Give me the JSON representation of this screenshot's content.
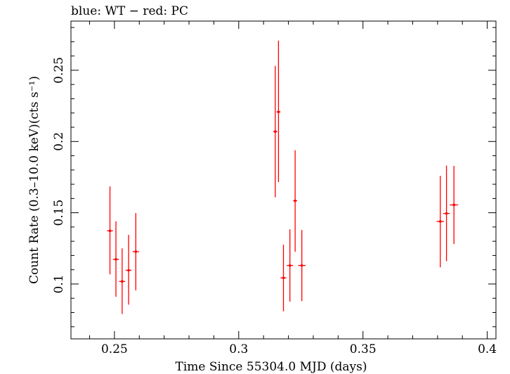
{
  "chart_data": {
    "type": "scatter",
    "title": "blue: WT − red: PC",
    "xlabel": "Time Since 55304.0 MJD (days)",
    "ylabel": "Count Rate (0.3–10.0 keV)(cts s⁻¹)",
    "xlim": [
      0.2325,
      0.4035
    ],
    "ylim": [
      0.0615,
      0.2845
    ],
    "x_ticks": [
      0.25,
      0.3,
      0.35,
      0.4
    ],
    "y_ticks": [
      0.1,
      0.15,
      0.2,
      0.25
    ],
    "x_tick_labels": [
      "0.25",
      "0.3",
      "0.35",
      "0.4"
    ],
    "y_tick_labels": [
      "0.1",
      "0.15",
      "0.2",
      "0.25"
    ],
    "grid": false,
    "series": [
      {
        "color": "#ff0000",
        "points": [
          {
            "x": 0.2482,
            "y": 0.1373,
            "xerr": 0.0012,
            "ylo": 0.1068,
            "yhi": 0.1685
          },
          {
            "x": 0.2506,
            "y": 0.1173,
            "xerr": 0.0012,
            "ylo": 0.091,
            "yhi": 0.144
          },
          {
            "x": 0.2531,
            "y": 0.1018,
            "xerr": 0.0012,
            "ylo": 0.079,
            "yhi": 0.125
          },
          {
            "x": 0.2557,
            "y": 0.1096,
            "xerr": 0.0012,
            "ylo": 0.0855,
            "yhi": 0.1345
          },
          {
            "x": 0.2586,
            "y": 0.1227,
            "xerr": 0.0013,
            "ylo": 0.0955,
            "yhi": 0.1498
          },
          {
            "x": 0.3147,
            "y": 0.207,
            "xerr": 0.0008,
            "ylo": 0.1608,
            "yhi": 0.2531
          },
          {
            "x": 0.316,
            "y": 0.2208,
            "xerr": 0.0008,
            "ylo": 0.1715,
            "yhi": 0.2708
          },
          {
            "x": 0.318,
            "y": 0.1043,
            "xerr": 0.0012,
            "ylo": 0.0808,
            "yhi": 0.1276
          },
          {
            "x": 0.3206,
            "y": 0.113,
            "xerr": 0.0013,
            "ylo": 0.0876,
            "yhi": 0.1384
          },
          {
            "x": 0.3227,
            "y": 0.1584,
            "xerr": 0.0008,
            "ylo": 0.1226,
            "yhi": 0.1939
          },
          {
            "x": 0.3254,
            "y": 0.113,
            "xerr": 0.0015,
            "ylo": 0.088,
            "yhi": 0.1379
          },
          {
            "x": 0.3811,
            "y": 0.1439,
            "xerr": 0.0015,
            "ylo": 0.1117,
            "yhi": 0.1759
          },
          {
            "x": 0.3836,
            "y": 0.1495,
            "xerr": 0.0013,
            "ylo": 0.116,
            "yhi": 0.1831
          },
          {
            "x": 0.3866,
            "y": 0.1555,
            "xerr": 0.0017,
            "ylo": 0.1281,
            "yhi": 0.1829
          }
        ]
      }
    ]
  }
}
